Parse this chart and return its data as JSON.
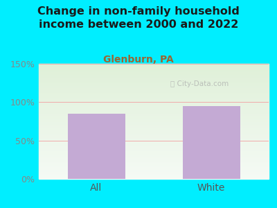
{
  "title": "Change in non-family household\nincome between 2000 and 2022",
  "subtitle": "Glenburn, PA",
  "categories": [
    "All",
    "White"
  ],
  "values": [
    85,
    95
  ],
  "bar_color": "#c4aad4",
  "title_color": "#1a1a1a",
  "subtitle_color": "#996633",
  "tick_color": "#888888",
  "xlabel_color": "#555555",
  "ylim": [
    0,
    150
  ],
  "yticks": [
    0,
    50,
    100,
    150
  ],
  "ytick_labels": [
    "0%",
    "50%",
    "100%",
    "150%"
  ],
  "background_outer": "#00eeff",
  "background_plot_top": "#f5faf5",
  "background_plot_bottom": "#dff0d8",
  "watermark": "ⓘ City-Data.com",
  "title_fontsize": 11.5,
  "subtitle_fontsize": 10,
  "tick_fontsize": 9,
  "xlabel_fontsize": 10,
  "bar_width": 0.5,
  "grid_color": "#f0aaaa",
  "grid_linewidth": 0.7
}
